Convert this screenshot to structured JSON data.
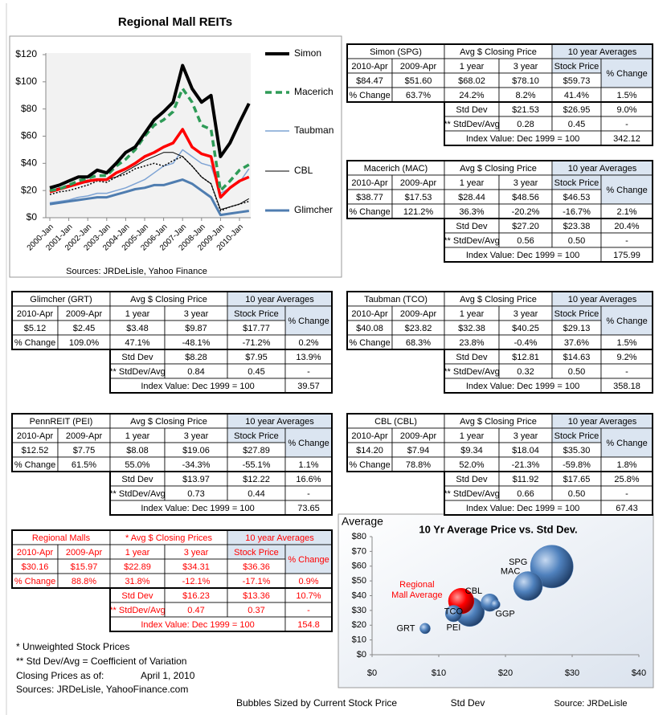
{
  "title": "Regional Mall REITs",
  "chart_data": [
    {
      "type": "line",
      "source": "Sources: JRDeLisle, Yahoo Finance",
      "categories": [
        "2000-Jan",
        null,
        "2001-Jan",
        null,
        "2002-Jan",
        null,
        "2003-Jan",
        null,
        "2004-Jan",
        null,
        "2005-Jan",
        null,
        "2006-Jan",
        null,
        "2007-Jan",
        null,
        "2008-Jan",
        null,
        "2009-Jan",
        null,
        "2010-Jan",
        null
      ],
      "ylim": [
        0,
        120
      ],
      "yticks": [
        {
          "value": 0,
          "label": "$0"
        },
        {
          "value": 20,
          "label": "$20"
        },
        {
          "value": 40,
          "label": "$40"
        },
        {
          "value": 60,
          "label": "$60"
        },
        {
          "value": 80,
          "label": "$80"
        },
        {
          "value": 100,
          "label": "$100"
        },
        {
          "value": 120,
          "label": "$120"
        }
      ],
      "series": [
        {
          "name": "Simon",
          "color": "#000000",
          "line_style": "solid",
          "values": [
            22,
            24,
            27,
            30,
            30,
            35,
            33,
            40,
            48,
            52,
            62,
            72,
            78,
            85,
            112,
            95,
            85,
            90,
            45,
            55,
            70,
            84
          ]
        },
        {
          "name": "Macerich",
          "color": "#2e9b57",
          "line_style": "dashed",
          "values": [
            20,
            21,
            24,
            27,
            29,
            31,
            31,
            38,
            43,
            50,
            60,
            68,
            72,
            78,
            95,
            85,
            68,
            65,
            20,
            27,
            35,
            39
          ]
        },
        {
          "name": "Taubman",
          "color": "#7da3d4",
          "line_style": "solid",
          "values": [
            11,
            12,
            13,
            15,
            16,
            18,
            18,
            20,
            22,
            25,
            28,
            33,
            38,
            40,
            50,
            45,
            40,
            38,
            18,
            22,
            26,
            36
          ]
        },
        {
          "name": "CBL",
          "color": "#000000",
          "line_style": "solid",
          "values": [
            20,
            22,
            24,
            25,
            26,
            28,
            28,
            30,
            34,
            38,
            42,
            45,
            48,
            48,
            45,
            38,
            30,
            25,
            6,
            8,
            10,
            14
          ]
        },
        {
          "name": "Glimcher",
          "color": "#4f7db0",
          "line_style": "solid",
          "values": [
            10,
            11,
            12,
            13,
            14,
            15,
            15,
            17,
            19,
            21,
            22,
            24,
            24,
            26,
            28,
            25,
            20,
            15,
            2,
            3,
            4,
            5
          ]
        },
        {
          "color": "#ff0000",
          "line_style": "solid",
          "values": [
            19,
            21,
            23,
            25,
            27,
            28,
            28,
            33,
            36,
            40,
            45,
            48,
            52,
            55,
            65,
            52,
            47,
            45,
            15,
            22,
            27,
            30
          ]
        },
        {
          "color": "#000000",
          "line_style": "dotted",
          "values": [
            17,
            19,
            20,
            22,
            24,
            27,
            26,
            30,
            32,
            36,
            38,
            40,
            38,
            42,
            45,
            38,
            30,
            25,
            5,
            8,
            10,
            12
          ]
        }
      ]
    },
    {
      "type": "bubble",
      "title": "10 Yr Average Price vs. Std Dev.",
      "y_label": "Average",
      "x_label": "Std Dev",
      "note": "Bubbles Sized by Current Stock Price",
      "source": "Source: JRDeLisle",
      "xlim": [
        0,
        40
      ],
      "xticks": [
        {
          "value": 0,
          "label": "$0"
        },
        {
          "value": 10,
          "label": "$10"
        },
        {
          "value": 20,
          "label": "$20"
        },
        {
          "value": 30,
          "label": "$30"
        },
        {
          "value": 40,
          "label": "$40"
        }
      ],
      "ylim": [
        0,
        80
      ],
      "yticks": [
        {
          "value": 0,
          "label": "$0"
        },
        {
          "value": 10,
          "label": "$10"
        },
        {
          "value": 20,
          "label": "$20"
        },
        {
          "value": 30,
          "label": "$30"
        },
        {
          "value": 40,
          "label": "$40"
        },
        {
          "value": 50,
          "label": "$50"
        },
        {
          "value": 60,
          "label": "$60"
        },
        {
          "value": 70,
          "label": "$70"
        },
        {
          "value": 80,
          "label": "$80"
        }
      ],
      "points": [
        {
          "label": "SPG",
          "x": 26.95,
          "y": 59.73,
          "size": 84.47,
          "color": "#4f81bd"
        },
        {
          "label": "MAC",
          "x": 23.38,
          "y": 46.53,
          "size": 38.77,
          "color": "#4f81bd"
        },
        {
          "label": "CBL",
          "x": 17.65,
          "y": 35.3,
          "size": 14.2,
          "color": "#4f81bd"
        },
        {
          "label": "GGP",
          "x": 18.5,
          "y": 34,
          "size": 4,
          "color": "#4f81bd"
        },
        {
          "label": "TCO",
          "x": 14.63,
          "y": 29.13,
          "size": 40.08,
          "color": "#4f81bd"
        },
        {
          "label": "PEI",
          "x": 12.22,
          "y": 27.89,
          "size": 12.52,
          "color": "#4f81bd"
        },
        {
          "label": "GRT",
          "x": 7.95,
          "y": 17.77,
          "size": 5.12,
          "color": "#4f81bd"
        },
        {
          "label": "Regional Mall Average",
          "x": 13.36,
          "y": 36.36,
          "size": 30.16,
          "color": "#ff0000"
        }
      ]
    }
  ],
  "tables": [
    {
      "title": "Simon (SPG)",
      "avg_header": "Avg $ Closing Price",
      "ten_year_header": "10 year Averages",
      "columns": [
        "2010-Apr",
        "2009-Apr",
        "1 year",
        "3 year",
        "Stock Price",
        "% Change"
      ],
      "price": [
        "$84.47",
        "$51.60",
        "$68.02",
        "$78.10",
        "$59.73"
      ],
      "change": [
        "% Change",
        "63.7%",
        "24.2%",
        "8.2%",
        "41.4%",
        "1.5%"
      ],
      "std": [
        "Std Dev",
        "$21.53",
        "$26.95",
        "9.0%"
      ],
      "cv": [
        "** StdDev/Avg",
        "0.28",
        "0.45",
        "-"
      ],
      "index": [
        "Index Value: Dec 1999 = 100",
        "342.12"
      ],
      "text_color": "#000000"
    },
    {
      "title": "Macerich (MAC)",
      "avg_header": "Avg $ Closing Price",
      "ten_year_header": "10 year Averages",
      "columns": [
        "2010-Apr",
        "2009-Apr",
        "1 year",
        "3 year",
        "Stock Price",
        "% Change"
      ],
      "price": [
        "$38.77",
        "$17.53",
        "$28.44",
        "$48.56",
        "$46.53"
      ],
      "change": [
        "% Change",
        "121.2%",
        "36.3%",
        "-20.2%",
        "-16.7%",
        "2.1%"
      ],
      "std": [
        "Std Dev",
        "$27.20",
        "$23.38",
        "20.4%"
      ],
      "cv": [
        "** StdDev/Avg",
        "0.56",
        "0.50",
        "-"
      ],
      "index": [
        "Index Value: Dec 1999 = 100",
        "175.99"
      ],
      "text_color": "#000000"
    },
    {
      "title": "Glimcher (GRT)",
      "avg_header": "Avg $ Closing Price",
      "ten_year_header": "10 year Averages",
      "columns": [
        "2010-Apr",
        "2009-Apr",
        "1 year",
        "3 year",
        "Stock Price",
        "% Change"
      ],
      "price": [
        "$5.12",
        "$2.45",
        "$3.48",
        "$9.87",
        "$17.77"
      ],
      "change": [
        "% Change",
        "109.0%",
        "47.1%",
        "-48.1%",
        "-71.2%",
        "0.2%"
      ],
      "std": [
        "Std Dev",
        "$8.28",
        "$7.95",
        "13.9%"
      ],
      "cv": [
        "** StdDev/Avg",
        "0.84",
        "0.45",
        "-"
      ],
      "index": [
        "Index Value: Dec 1999 = 100",
        "39.57"
      ],
      "text_color": "#000000"
    },
    {
      "title": "Taubman (TCO)",
      "avg_header": "Avg $ Closing Price",
      "ten_year_header": "10 year Averages",
      "columns": [
        "2010-Apr",
        "2009-Apr",
        "1 year",
        "3 year",
        "Stock Price",
        "% Change"
      ],
      "price": [
        "$40.08",
        "$23.82",
        "$32.38",
        "$40.25",
        "$29.13"
      ],
      "change": [
        "% Change",
        "68.3%",
        "23.8%",
        "-0.4%",
        "37.6%",
        "1.5%"
      ],
      "std": [
        "Std Dev",
        "$12.81",
        "$14.63",
        "9.2%"
      ],
      "cv": [
        "** StdDev/Avg",
        "0.32",
        "0.50",
        "-"
      ],
      "index": [
        "Index Value: Dec 1999 = 100",
        "358.18"
      ],
      "text_color": "#000000"
    },
    {
      "title": "PennREIT (PEI)",
      "avg_header": "Avg $ Closing Price",
      "ten_year_header": "10 year Averages",
      "columns": [
        "2010-Apr",
        "2009-Apr",
        "1 year",
        "3 year",
        "Stock Price",
        "% Change"
      ],
      "price": [
        "$12.52",
        "$7.75",
        "$8.08",
        "$19.06",
        "$27.89"
      ],
      "change": [
        "% Change",
        "61.5%",
        "55.0%",
        "-34.3%",
        "-55.1%",
        "1.1%"
      ],
      "std": [
        "Std Dev",
        "$13.97",
        "$12.22",
        "16.6%"
      ],
      "cv": [
        "** StdDev/Avg",
        "0.73",
        "0.44",
        "-"
      ],
      "index": [
        "Index Value: Dec 1999 = 100",
        "73.65"
      ],
      "text_color": "#000000"
    },
    {
      "title": "CBL (CBL)",
      "avg_header": "Avg $ Closing Price",
      "ten_year_header": "10 year Averages",
      "columns": [
        "2010-Apr",
        "2009-Apr",
        "1 year",
        "3 year",
        "Stock Price",
        "% Change"
      ],
      "price": [
        "$14.20",
        "$7.94",
        "$9.34",
        "$18.04",
        "$35.30"
      ],
      "change": [
        "% Change",
        "78.8%",
        "52.0%",
        "-21.3%",
        "-59.8%",
        "1.8%"
      ],
      "std": [
        "Std Dev",
        "$11.92",
        "$17.65",
        "25.8%"
      ],
      "cv": [
        "** StdDev/Avg",
        "0.66",
        "0.50",
        "-"
      ],
      "index": [
        "Index Value: Dec 1999 = 100",
        "67.43"
      ],
      "text_color": "#000000"
    },
    {
      "title": "Regional Malls",
      "avg_header": "* Avg $ Closing Prices",
      "ten_year_header": "10 year Averages",
      "columns": [
        "2010-Apr",
        "2009-Apr",
        "1 year",
        "3 year",
        "Stock Price",
        "% Change"
      ],
      "price": [
        "$30.16",
        "$15.97",
        "$22.89",
        "$34.31",
        "$36.36"
      ],
      "change": [
        "% Change",
        "88.8%",
        "31.8%",
        "-12.1%",
        "-17.1%",
        "0.9%"
      ],
      "std": [
        "Std Dev",
        "$16.23",
        "$13.36",
        "10.7%"
      ],
      "cv": [
        "** StdDev/Avg",
        "0.47",
        "0.37",
        "-"
      ],
      "index": [
        "Index Value: Dec 1999 = 100",
        "154.8"
      ],
      "text_color": "#ff0000"
    }
  ],
  "notes": [
    "* Unweighted Stock Prices",
    "** Std Dev/Avg = Coefficient of Variation",
    "Closing Prices as of:",
    "April 1, 2010",
    "Sources: JRDeLisle, YahooFinance.com"
  ]
}
